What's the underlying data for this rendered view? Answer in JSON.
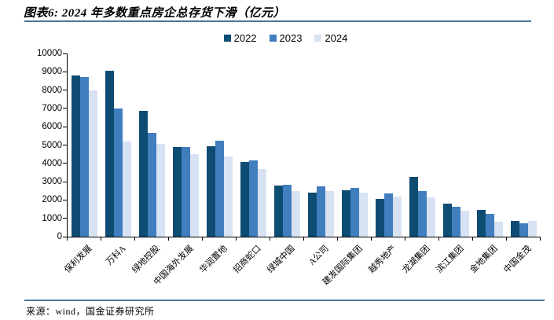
{
  "header": {
    "title": "图表6: 2024 年多数重点房企总存货下滑（亿元）"
  },
  "footer": {
    "source": "来源：wind，国金证券研究所"
  },
  "colors": {
    "rule": "#47789C",
    "axis": "#000000",
    "series_2022": "#0E4C73",
    "series_2023": "#407EBE",
    "series_2024": "#D7E3F2"
  },
  "chart_data": {
    "type": "bar",
    "title": "2024 年多数重点房企总存货下滑（亿元）",
    "unit": "亿元",
    "grid": false,
    "legend_position": "top",
    "ylim": [
      0,
      10000
    ],
    "y_ticks": [
      0,
      1000,
      2000,
      3000,
      4000,
      5000,
      6000,
      7000,
      8000,
      9000,
      10000
    ],
    "categories": [
      "保利发展",
      "万科A",
      "绿地控股",
      "中国海外发展",
      "华润置地",
      "招商蛇口",
      "绿城中国",
      "A公司",
      "建发国际集团",
      "越秀地产",
      "龙湖集团",
      "滨江集团",
      "金地集团",
      "中国金茂"
    ],
    "series": [
      {
        "name": "2022",
        "color": "#0E4C73",
        "values": [
          8800,
          9050,
          6850,
          4900,
          4950,
          4100,
          2800,
          2400,
          2550,
          2050,
          3250,
          1800,
          1450,
          850
        ]
      },
      {
        "name": "2023",
        "color": "#407EBE",
        "values": [
          8700,
          7000,
          5650,
          4900,
          5250,
          4150,
          2850,
          2750,
          2650,
          2350,
          2500,
          1650,
          1250,
          750
        ]
      },
      {
        "name": "2024",
        "color": "#D7E3F2",
        "values": [
          8000,
          5200,
          5050,
          4500,
          4400,
          3700,
          2500,
          2500,
          2400,
          2200,
          2150,
          1400,
          800,
          850
        ]
      }
    ]
  }
}
